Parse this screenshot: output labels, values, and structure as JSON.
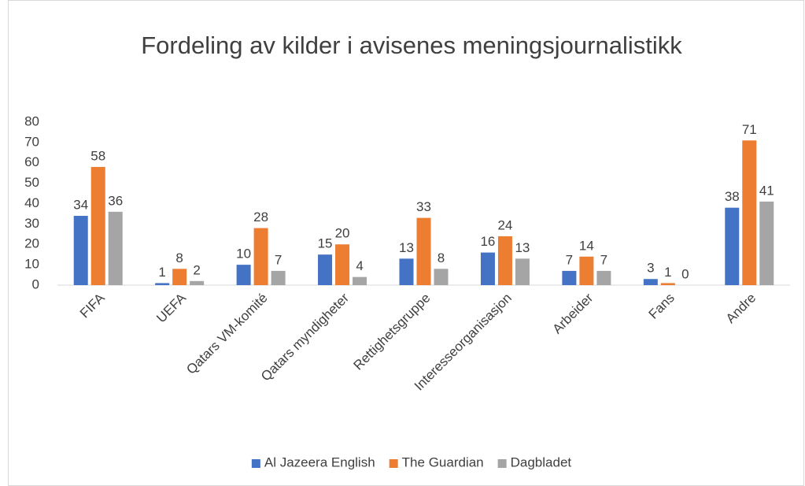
{
  "chart_data": {
    "type": "bar",
    "title": "Fordeling av kilder i avisenes meningsjournalistikk",
    "categories": [
      "FIFA",
      "UEFA",
      "Qatars VM-komité",
      "Qatars myndigheter",
      "Rettighetsgruppe",
      "Interesseorganisasjon",
      "Arbeider",
      "Fans",
      "Andre"
    ],
    "series": [
      {
        "name": "Al Jazeera English",
        "color": "#4472c4",
        "values": [
          34,
          1,
          10,
          15,
          13,
          16,
          7,
          3,
          38
        ]
      },
      {
        "name": "The Guardian",
        "color": "#ed7d31",
        "values": [
          58,
          8,
          28,
          20,
          33,
          24,
          14,
          1,
          71
        ]
      },
      {
        "name": "Dagbladet",
        "color": "#a5a5a5",
        "values": [
          36,
          2,
          7,
          4,
          8,
          13,
          7,
          0,
          41
        ]
      }
    ],
    "ylim": [
      0,
      80
    ],
    "yticks": [
      0,
      10,
      20,
      30,
      40,
      50,
      60,
      70,
      80
    ],
    "grid": false,
    "legend": "bottom"
  }
}
